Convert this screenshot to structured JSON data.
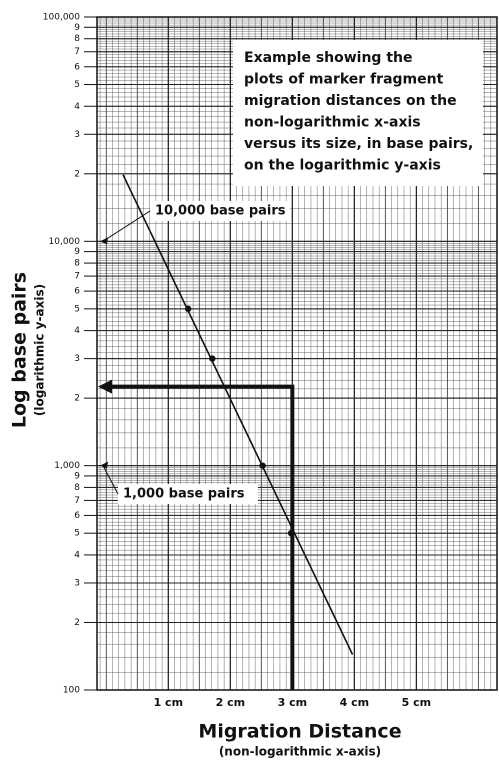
{
  "chart_data": {
    "type": "line",
    "y_label": "Log base pairs",
    "y_sublabel": "(logarithmic y-axis)",
    "x_label": "Migration Distance",
    "x_sublabel": "(non-logarithmic x-axis)",
    "log_y": true,
    "grid": true,
    "color": "#111111",
    "xlim": [
      -0.15,
      6.3
    ],
    "ylim": [
      100,
      100000
    ],
    "xticks": [
      {
        "value": 1,
        "label": "1 cm"
      },
      {
        "value": 2,
        "label": "2 cm"
      },
      {
        "value": 3,
        "label": "3 cm"
      },
      {
        "value": 4,
        "label": "4 cm"
      },
      {
        "value": 5,
        "label": "5 cm"
      }
    ],
    "yticks": [
      100,
      {
        "value": 200,
        "label": "2"
      },
      {
        "value": 300,
        "label": "3"
      },
      {
        "value": 400,
        "label": "4"
      },
      {
        "value": 500,
        "label": "5"
      },
      {
        "value": 600,
        "label": "6"
      },
      {
        "value": 700,
        "label": "7"
      },
      {
        "value": 800,
        "label": "8"
      },
      {
        "value": 900,
        "label": "9"
      },
      {
        "value": 1000,
        "label": "1,000"
      },
      {
        "value": 2000,
        "label": "2"
      },
      {
        "value": 3000,
        "label": "3"
      },
      {
        "value": 4000,
        "label": "4"
      },
      {
        "value": 5000,
        "label": "5"
      },
      {
        "value": 6000,
        "label": "6"
      },
      {
        "value": 7000,
        "label": "7"
      },
      {
        "value": 8000,
        "label": "8"
      },
      {
        "value": 9000,
        "label": "9"
      },
      {
        "value": 10000,
        "label": "10,000"
      },
      {
        "value": 20000,
        "label": "2"
      },
      {
        "value": 30000,
        "label": "3"
      },
      {
        "value": 40000,
        "label": "4"
      },
      {
        "value": 50000,
        "label": "5"
      },
      {
        "value": 60000,
        "label": "6"
      },
      {
        "value": 70000,
        "label": "7"
      },
      {
        "value": 80000,
        "label": "8"
      },
      {
        "value": 90000,
        "label": "9"
      },
      {
        "value": 100000,
        "label": "100,000"
      }
    ],
    "series": [
      {
        "type": "line",
        "x": [
          0.27,
          3.97
        ],
        "values": [
          19800,
          144
        ]
      },
      {
        "type": "scatter",
        "x": [
          1.32,
          1.71,
          2.52,
          2.98
        ],
        "values": [
          5000,
          3000,
          1000,
          500
        ]
      }
    ],
    "readout": {
      "x": 3,
      "y": 2250
    },
    "annotations": [
      {
        "text": [
          "Example showing the",
          "plots of marker fragment",
          "migration distances on the",
          "non-logarithmic x-axis",
          "versus its size, in base pairs,",
          "on the logarithmic y-axis"
        ]
      },
      {
        "text": "10,000 base pairs",
        "target": 10000
      },
      {
        "text": "1,000 base pairs",
        "target": 1000
      }
    ]
  }
}
